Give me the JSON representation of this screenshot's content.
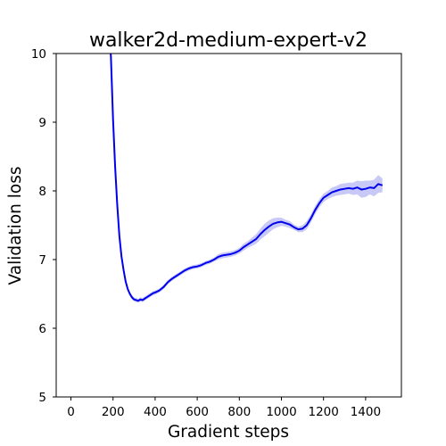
{
  "chart_data": {
    "type": "line",
    "title": "walker2d-medium-expert-v2",
    "xlabel": "Gradient steps",
    "ylabel": "Validation loss",
    "xlim": [
      -70,
      1570
    ],
    "ylim": [
      5,
      10
    ],
    "xticks": [
      0,
      200,
      400,
      600,
      800,
      1000,
      1200,
      1400
    ],
    "yticks": [
      5,
      6,
      7,
      8,
      9,
      10
    ],
    "grid": false,
    "legend": "none",
    "line_color": "#0000ee",
    "band_color": "#c9c9f7",
    "series": [
      {
        "x": [
          160,
          180,
          190,
          200,
          210,
          220,
          230,
          240,
          250,
          260,
          270,
          280,
          290,
          300,
          310,
          320,
          330,
          340,
          350,
          360,
          370,
          380,
          390,
          400,
          420,
          440,
          460,
          480,
          500,
          520,
          540,
          560,
          580,
          600,
          620,
          640,
          660,
          680,
          700,
          720,
          740,
          760,
          780,
          800,
          820,
          840,
          860,
          880,
          900,
          920,
          940,
          960,
          980,
          1000,
          1020,
          1040,
          1060,
          1080,
          1100,
          1120,
          1140,
          1160,
          1180,
          1200,
          1220,
          1240,
          1260,
          1280,
          1300,
          1320,
          1340,
          1360,
          1380,
          1400,
          1420,
          1440,
          1460,
          1480
        ],
        "y": [
          11.5,
          10.5,
          9.95,
          9.05,
          8.35,
          7.8,
          7.35,
          7.05,
          6.85,
          6.68,
          6.57,
          6.5,
          6.45,
          6.42,
          6.41,
          6.4,
          6.42,
          6.41,
          6.43,
          6.45,
          6.47,
          6.49,
          6.51,
          6.52,
          6.55,
          6.6,
          6.67,
          6.72,
          6.76,
          6.8,
          6.84,
          6.87,
          6.89,
          6.9,
          6.92,
          6.95,
          6.97,
          7.0,
          7.04,
          7.06,
          7.07,
          7.08,
          7.1,
          7.13,
          7.18,
          7.22,
          7.26,
          7.3,
          7.37,
          7.43,
          7.48,
          7.52,
          7.54,
          7.55,
          7.53,
          7.51,
          7.47,
          7.44,
          7.45,
          7.5,
          7.6,
          7.72,
          7.82,
          7.9,
          7.94,
          7.98,
          8.0,
          8.02,
          8.03,
          8.04,
          8.03,
          8.05,
          8.02,
          8.03,
          8.05,
          8.04,
          8.1,
          8.08
        ],
        "band": [
          0.02,
          0.02,
          0.02,
          0.03,
          0.03,
          0.03,
          0.03,
          0.03,
          0.03,
          0.03,
          0.03,
          0.03,
          0.03,
          0.03,
          0.03,
          0.03,
          0.03,
          0.03,
          0.03,
          0.03,
          0.03,
          0.03,
          0.03,
          0.03,
          0.03,
          0.03,
          0.03,
          0.03,
          0.03,
          0.03,
          0.03,
          0.03,
          0.03,
          0.03,
          0.03,
          0.03,
          0.03,
          0.03,
          0.04,
          0.04,
          0.04,
          0.04,
          0.04,
          0.04,
          0.05,
          0.05,
          0.06,
          0.07,
          0.08,
          0.09,
          0.09,
          0.08,
          0.07,
          0.06,
          0.05,
          0.05,
          0.04,
          0.04,
          0.05,
          0.06,
          0.06,
          0.06,
          0.06,
          0.06,
          0.06,
          0.07,
          0.07,
          0.08,
          0.08,
          0.08,
          0.09,
          0.1,
          0.12,
          0.12,
          0.1,
          0.12,
          0.13,
          0.1
        ]
      }
    ]
  }
}
